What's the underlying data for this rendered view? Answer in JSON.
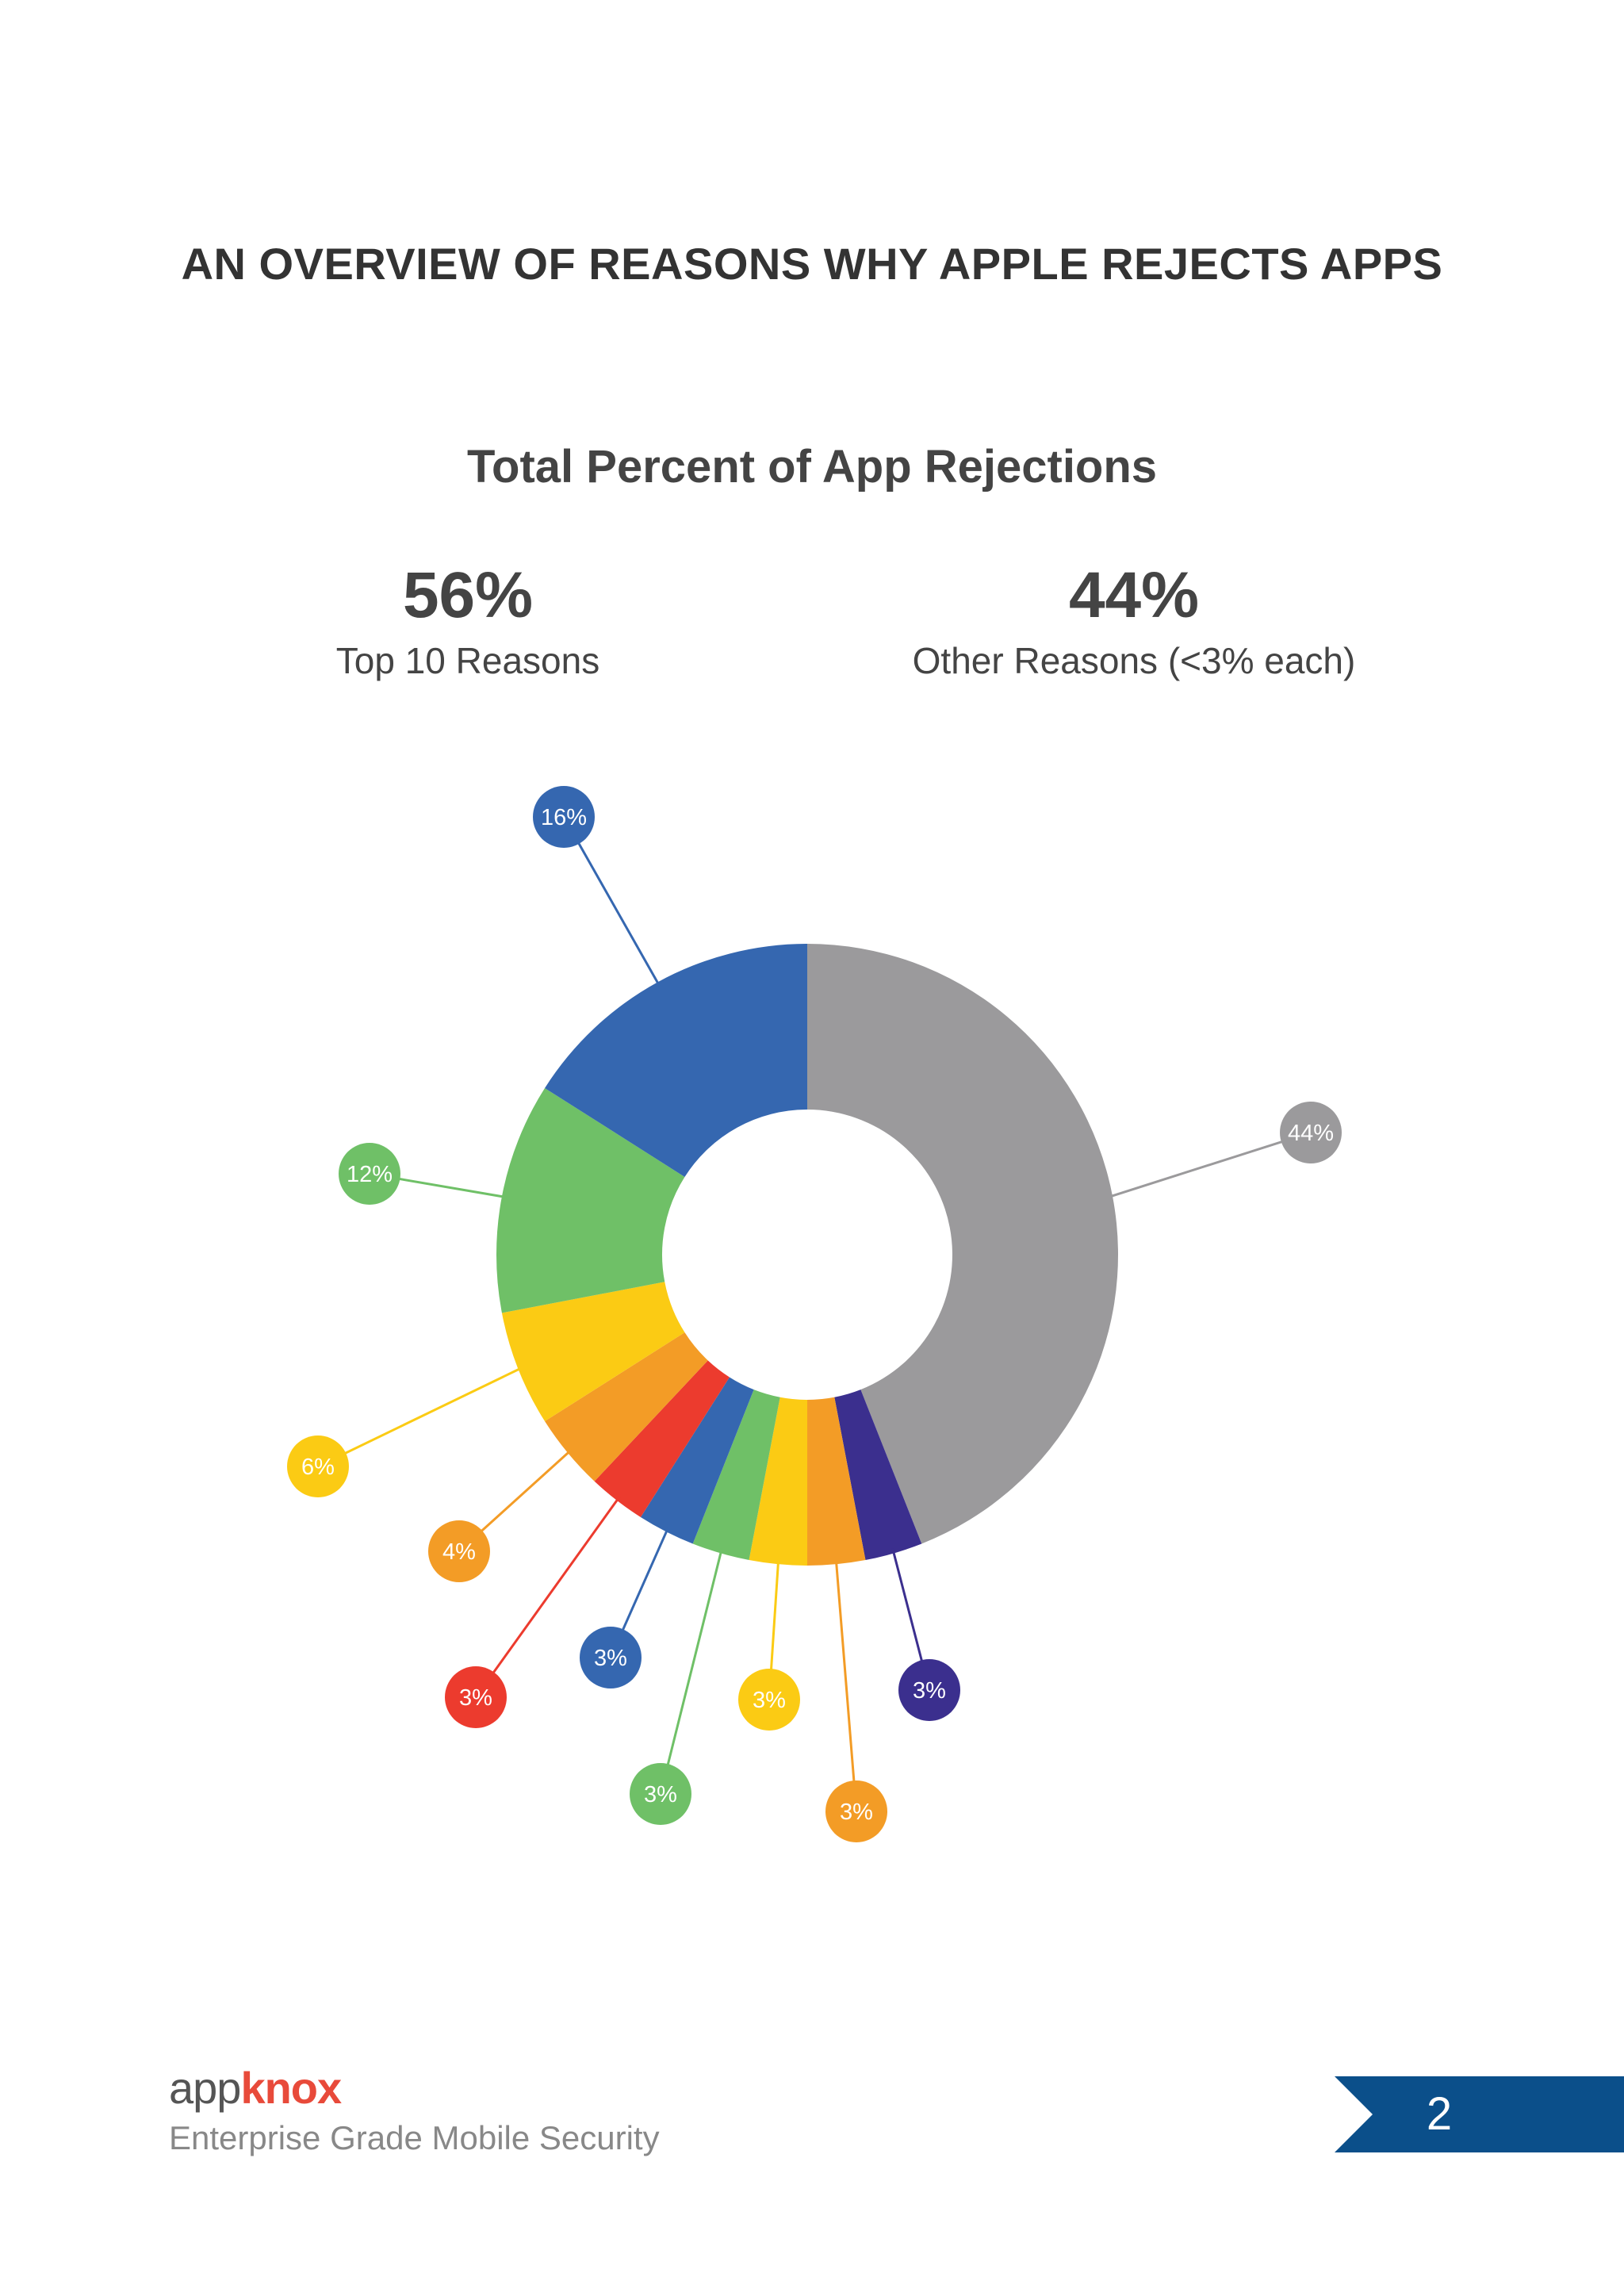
{
  "page": {
    "heading": "AN OVERVIEW OF REASONS WHY APPLE REJECTS APPS",
    "page_number": "2"
  },
  "summary": {
    "left": {
      "value": "56%",
      "label": "Top 10 Reasons"
    },
    "right": {
      "value": "44%",
      "label": "Other Reasons (<3% each)"
    }
  },
  "footer": {
    "brand_prefix": "app",
    "brand_suffix": "knox",
    "tagline": "Enterprise Grade Mobile Security"
  },
  "colors": {
    "accent": "#0b4f8a",
    "brand_red": "#e84a3a"
  },
  "chart_data": {
    "type": "pie",
    "variant": "donut",
    "title": "Total Percent of App Rejections",
    "slices": [
      {
        "value": 44,
        "label": "44%",
        "color": "#9b9a9c"
      },
      {
        "value": 3,
        "label": "3%",
        "color": "#3b2f8e"
      },
      {
        "value": 3,
        "label": "3%",
        "color": "#f39c26"
      },
      {
        "value": 3,
        "label": "3%",
        "color": "#fbcb14"
      },
      {
        "value": 3,
        "label": "3%",
        "color": "#6fc067"
      },
      {
        "value": 3,
        "label": "3%",
        "color": "#3567b0"
      },
      {
        "value": 3,
        "label": "3%",
        "color": "#ec3b2e"
      },
      {
        "value": 4,
        "label": "4%",
        "color": "#f39c26"
      },
      {
        "value": 6,
        "label": "6%",
        "color": "#fbcb14"
      },
      {
        "value": 12,
        "label": "12%",
        "color": "#6fc067"
      },
      {
        "value": 16,
        "label": "16%",
        "color": "#3567b0"
      }
    ],
    "legend": "none"
  }
}
